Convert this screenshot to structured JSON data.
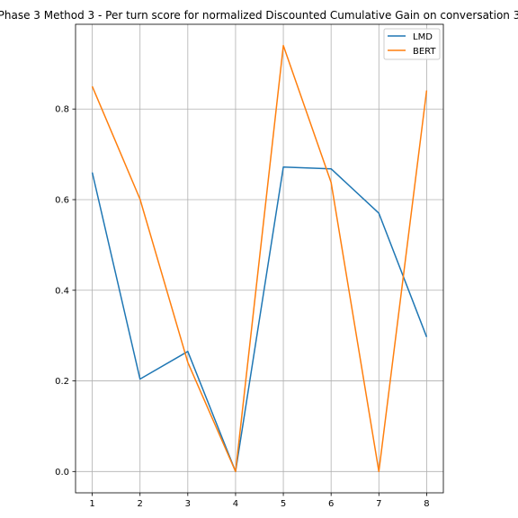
{
  "chart_data": {
    "type": "line",
    "title": "Phase 3 Method 3 - Per turn score for normalized Discounted Cumulative Gain on conversation 3",
    "xlabel": "",
    "ylabel": "",
    "x": [
      1,
      2,
      3,
      4,
      5,
      6,
      7,
      8
    ],
    "xticks": [
      "1",
      "2",
      "3",
      "4",
      "5",
      "6",
      "7",
      "8"
    ],
    "yticks": [
      "0.0",
      "0.2",
      "0.4",
      "0.6",
      "0.8"
    ],
    "ytick_values": [
      0.0,
      0.2,
      0.4,
      0.6,
      0.8
    ],
    "xlim": [
      0.65,
      8.35
    ],
    "ylim": [
      -0.047,
      0.987
    ],
    "grid": true,
    "legend_position": "top-right",
    "series": [
      {
        "name": "LMD",
        "color": "#1f77b4",
        "values": [
          0.66,
          0.204,
          0.265,
          0.0,
          0.672,
          0.668,
          0.57,
          0.297
        ]
      },
      {
        "name": "BERT",
        "color": "#ff7f0e",
        "values": [
          0.85,
          0.601,
          0.241,
          0.0,
          0.94,
          0.638,
          0.0,
          0.841
        ]
      }
    ]
  }
}
